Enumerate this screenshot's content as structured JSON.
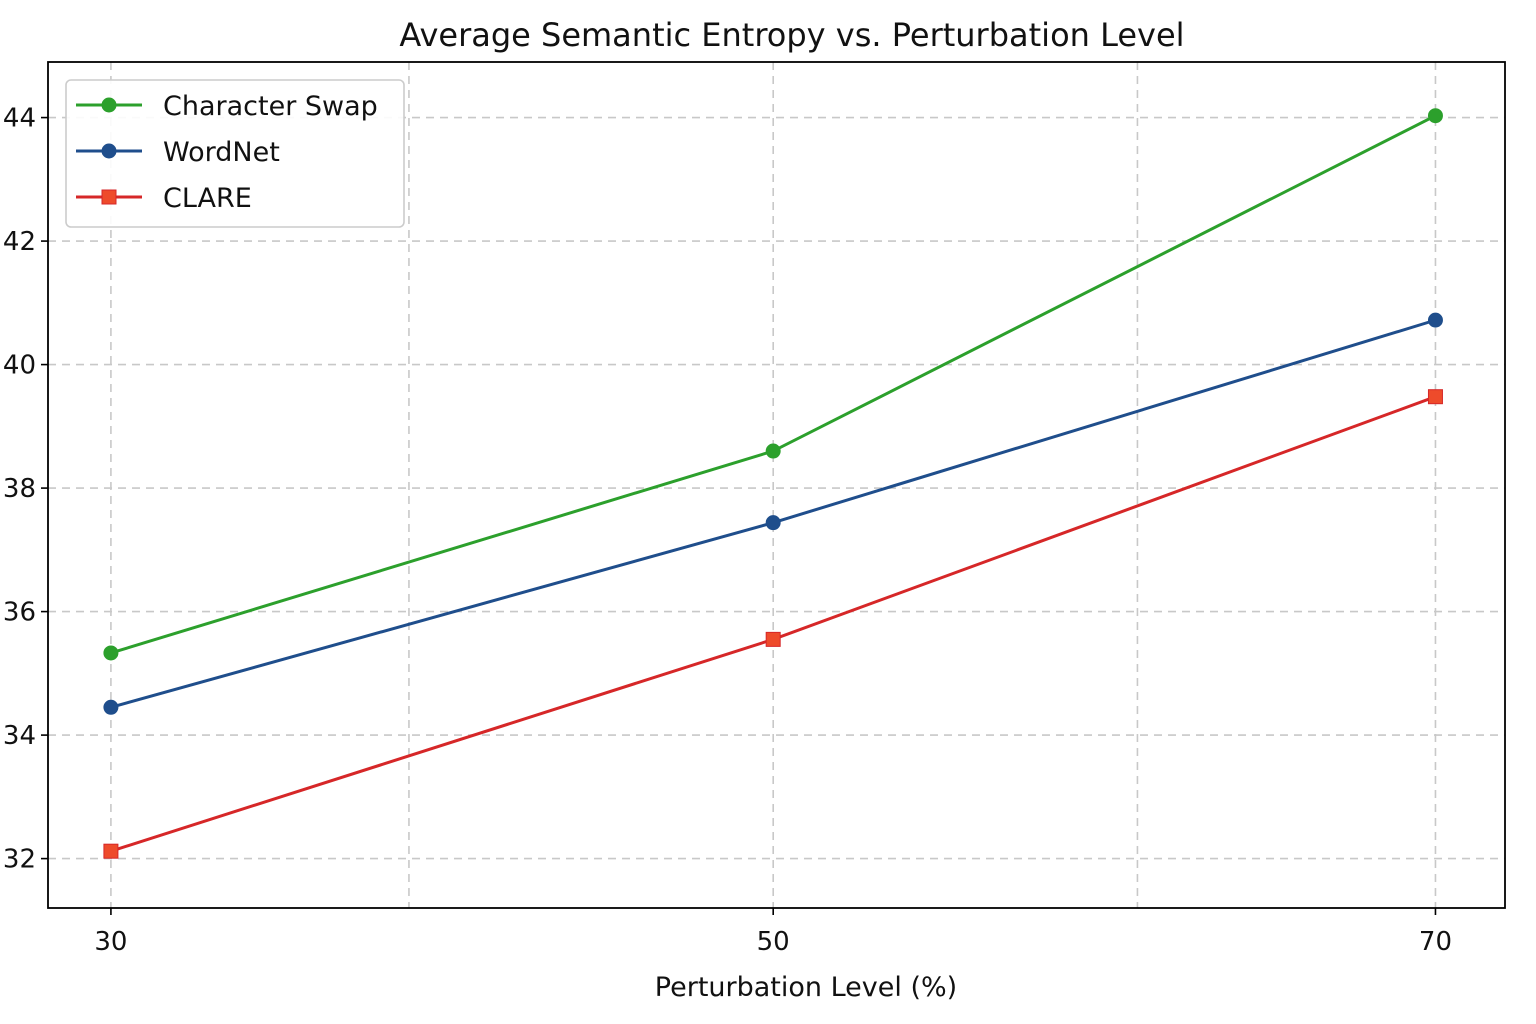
{
  "chart_data": {
    "type": "line",
    "title": "Average Semantic Entropy vs. Perturbation Level",
    "xlabel": "Perturbation Level (%)",
    "ylabel": "",
    "x": [
      30,
      50,
      70
    ],
    "xticks": [
      "30",
      "50",
      "70"
    ],
    "xlim": [
      28.1,
      72.1
    ],
    "ylim": [
      31.2,
      44.9
    ],
    "yticks": [
      "32",
      "34",
      "36",
      "38",
      "40",
      "42",
      "44"
    ],
    "extra_vertical_grid": [
      39,
      61
    ],
    "grid": true,
    "legend_position": "top-left",
    "series": [
      {
        "name": "Character Swap",
        "values": [
          35.33,
          38.6,
          44.03
        ],
        "color": "#2ca02c",
        "marker": "circle"
      },
      {
        "name": "WordNet",
        "values": [
          34.45,
          37.44,
          40.72
        ],
        "color": "#1f4e8c",
        "marker": "circle"
      },
      {
        "name": "CLARE",
        "values": [
          32.12,
          35.55,
          39.48
        ],
        "color": "#d62728",
        "marker_color": "#ee4b2b",
        "marker": "square"
      }
    ]
  }
}
